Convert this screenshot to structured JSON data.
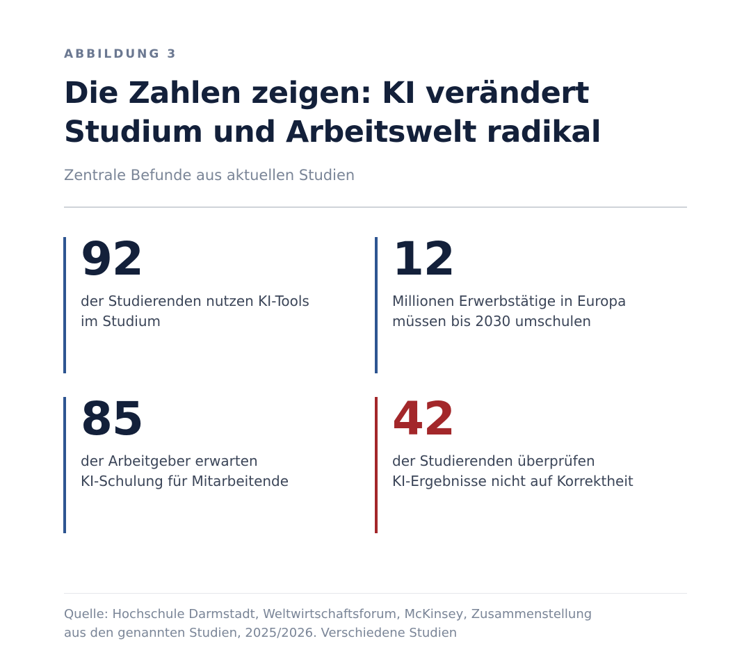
{
  "figure": {
    "kicker": "ABBILDUNG 3",
    "title_lines": [
      "Die Zahlen zeigen: KI verändert",
      "Studium und Arbeitswelt radikal"
    ],
    "subtitle": "Zentrale Befunde aus aktuellen Studien"
  },
  "stats": [
    {
      "value": "92",
      "lines": [
        "der Studierenden nutzen KI-Tools",
        "im Studium"
      ]
    },
    {
      "value": "12",
      "lines": [
        "Millionen Erwerbstätige in Europa",
        "müssen bis 2030 umschulen"
      ]
    },
    {
      "value": "85",
      "lines": [
        "der Arbeitgeber erwarten",
        "KI-Schulung für Mitarbeitende"
      ]
    },
    {
      "value": "42",
      "lines": [
        "der Studierenden überprüfen",
        "KI-Ergebnisse nicht auf Korrektheit"
      ]
    }
  ],
  "source_lines": [
    "Quelle: Hochschule Darmstadt, Weltwirtschaftsforum, McKinsey, Zusammenstellung",
    "aus den genannten Studien, 2025/2026. Verschiedene Studien"
  ],
  "colors": {
    "ink": "#13203a",
    "accent_blue": "#2e5591",
    "accent_red": "#a3272a",
    "muted": "#7a8597"
  }
}
